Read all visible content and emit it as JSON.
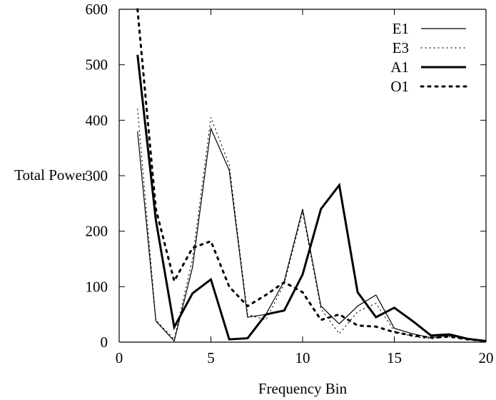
{
  "chart_data": {
    "type": "line",
    "title": "",
    "xlabel": "Frequency Bin",
    "ylabel": "Total Power",
    "xlim": [
      0,
      20
    ],
    "ylim": [
      0,
      600
    ],
    "xticks": [
      "0",
      "5",
      "10",
      "15",
      "20"
    ],
    "yticks": [
      "0",
      "100",
      "200",
      "300",
      "400",
      "500",
      "600"
    ],
    "grid": false,
    "legend_position": "top-right",
    "x": [
      1,
      2,
      3,
      4,
      5,
      6,
      7,
      8,
      9,
      10,
      11,
      12,
      13,
      14,
      15,
      16,
      17,
      18,
      19,
      20
    ],
    "series": [
      {
        "name": "E1",
        "style": "thin-solid",
        "values": [
          380,
          38,
          2,
          135,
          385,
          310,
          45,
          50,
          110,
          240,
          65,
          33,
          65,
          85,
          25,
          15,
          8,
          12,
          6,
          2
        ]
      },
      {
        "name": "E3",
        "style": "thin-dotted",
        "values": [
          420,
          40,
          5,
          150,
          405,
          320,
          50,
          40,
          105,
          235,
          60,
          15,
          55,
          70,
          20,
          10,
          6,
          10,
          5,
          2
        ]
      },
      {
        "name": "A1",
        "style": "thick-solid",
        "values": [
          518,
          220,
          27,
          88,
          113,
          5,
          7,
          50,
          57,
          122,
          240,
          283,
          90,
          45,
          62,
          38,
          12,
          14,
          6,
          2
        ]
      },
      {
        "name": "O1",
        "style": "thick-dotted",
        "values": [
          600,
          240,
          110,
          170,
          182,
          100,
          65,
          85,
          108,
          90,
          40,
          50,
          30,
          28,
          18,
          12,
          8,
          10,
          5,
          2
        ]
      }
    ]
  }
}
